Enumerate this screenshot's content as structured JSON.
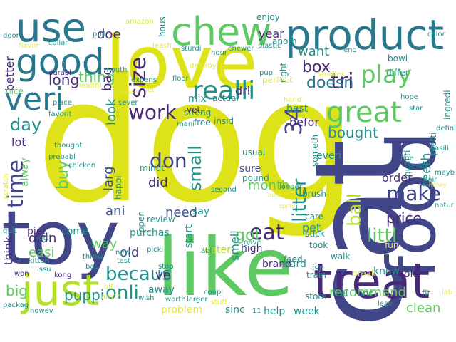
{
  "background": "#ffffff",
  "palette": {
    "yellow": "#dde318",
    "lime": "#b5de2b",
    "green": "#5ec962",
    "teal": "#21918c",
    "blue": "#3b528b",
    "indigo": "#404688",
    "purple": "#482878",
    "deep": "#440154",
    "cyan": "#2a788e",
    "pale": "#e4e84a"
  },
  "words": [
    {
      "text": "dog",
      "color": "yellow",
      "orientation": "horizontal"
    },
    {
      "text": "cat",
      "color": "indigo",
      "orientation": "vertical"
    },
    {
      "text": "love",
      "color": "yellow",
      "orientation": "horizontal"
    },
    {
      "text": "toy",
      "color": "indigo",
      "orientation": "horizontal"
    },
    {
      "text": "like",
      "color": "green",
      "orientation": "horizontal"
    },
    {
      "text": "food",
      "color": "indigo",
      "orientation": "vertical"
    },
    {
      "text": "product",
      "color": "cyan",
      "orientation": "horizontal"
    },
    {
      "text": "treat",
      "color": "purple",
      "orientation": "horizontal"
    },
    {
      "text": "chew",
      "color": "green",
      "orientation": "horizontal"
    },
    {
      "text": "just",
      "color": "lime",
      "orientation": "horizontal"
    },
    {
      "text": "use",
      "color": "cyan",
      "orientation": "horizontal"
    },
    {
      "text": "good",
      "color": "cyan",
      "orientation": "horizontal"
    },
    {
      "text": "veri",
      "color": "cyan",
      "orientation": "horizontal"
    },
    {
      "text": "great",
      "color": "green",
      "orientation": "horizontal"
    },
    {
      "text": "realli",
      "color": "teal",
      "orientation": "horizontal"
    },
    {
      "text": "work",
      "color": "purple",
      "orientation": "horizontal"
    },
    {
      "text": "play",
      "color": "green",
      "orientation": "horizontal"
    },
    {
      "text": "time",
      "color": "indigo",
      "orientation": "vertical"
    },
    {
      "text": "size",
      "color": "purple",
      "orientation": "vertical"
    },
    {
      "text": "tri",
      "color": "purple",
      "orientation": "horizontal"
    },
    {
      "text": "34",
      "color": "indigo",
      "orientation": "vertical"
    },
    {
      "text": "don",
      "color": "indigo",
      "orientation": "horizontal"
    },
    {
      "text": "small",
      "color": "teal",
      "orientation": "vertical"
    },
    {
      "text": "litter",
      "color": "teal",
      "orientation": "vertical"
    },
    {
      "text": "ball",
      "color": "lime",
      "orientation": "vertical"
    },
    {
      "text": "make",
      "color": "indigo",
      "orientation": "horizontal"
    },
    {
      "text": "eat",
      "color": "purple",
      "orientation": "horizontal"
    },
    {
      "text": "littl",
      "color": "green",
      "orientation": "horizontal"
    },
    {
      "text": "becaus",
      "color": "teal",
      "orientation": "horizontal"
    },
    {
      "text": "onli",
      "color": "teal",
      "orientation": "horizontal"
    },
    {
      "text": "day",
      "color": "teal",
      "orientation": "horizontal"
    },
    {
      "text": "buy",
      "color": "green",
      "orientation": "vertical"
    },
    {
      "text": "want",
      "color": "teal",
      "orientation": "horizontal"
    },
    {
      "text": "box",
      "color": "purple",
      "orientation": "horizontal"
    },
    {
      "text": "doesn",
      "color": "cyan",
      "orientation": "horizontal"
    },
    {
      "text": "bought",
      "color": "teal",
      "orientation": "horizontal"
    },
    {
      "text": "month",
      "color": "green",
      "orientation": "horizontal"
    },
    {
      "text": "got",
      "color": "green",
      "orientation": "horizontal"
    },
    {
      "text": "year",
      "color": "purple",
      "orientation": "horizontal"
    },
    {
      "text": "did",
      "color": "purple",
      "orientation": "horizontal"
    },
    {
      "text": "need",
      "color": "blue",
      "orientation": "horizontal"
    },
    {
      "text": "thing",
      "color": "green",
      "orientation": "horizontal"
    },
    {
      "text": "long",
      "color": "purple",
      "orientation": "horizontal"
    },
    {
      "text": "doe",
      "color": "purple",
      "orientation": "horizontal"
    },
    {
      "text": "bag",
      "color": "purple",
      "orientation": "vertical"
    },
    {
      "text": "look",
      "color": "teal",
      "orientation": "vertical"
    },
    {
      "text": "larg",
      "color": "blue",
      "orientation": "vertical"
    },
    {
      "text": "ani",
      "color": "blue",
      "orientation": "horizontal"
    },
    {
      "text": "old",
      "color": "blue",
      "orientation": "horizontal"
    },
    {
      "text": "ve",
      "color": "purple",
      "orientation": "horizontal"
    },
    {
      "text": "puppi",
      "color": "teal",
      "orientation": "horizontal"
    },
    {
      "text": "didn",
      "color": "purple",
      "orientation": "horizontal"
    },
    {
      "text": "easi",
      "color": "green",
      "orientation": "horizontal"
    },
    {
      "text": "think",
      "color": "purple",
      "orientation": "vertical"
    },
    {
      "text": "big",
      "color": "green",
      "orientation": "horizontal"
    },
    {
      "text": "way",
      "color": "green",
      "orientation": "horizontal"
    },
    {
      "text": "recommend",
      "color": "green",
      "orientation": "horizontal"
    },
    {
      "text": "clean",
      "color": "green",
      "orientation": "horizontal"
    },
    {
      "text": "price",
      "color": "purple",
      "orientation": "horizontal"
    },
    {
      "text": "pet",
      "color": "teal",
      "orientation": "horizontal"
    },
    {
      "text": "order",
      "color": "purple",
      "orientation": "horizontal"
    },
    {
      "text": "teeth",
      "color": "teal",
      "orientation": "vertical"
    },
    {
      "text": "smell",
      "color": "teal",
      "orientation": "vertical"
    },
    {
      "text": "better",
      "color": "purple",
      "orientation": "vertical"
    },
    {
      "text": "lot",
      "color": "purple",
      "orientation": "horizontal"
    },
    {
      "text": "alway",
      "color": "green",
      "orientation": "vertical"
    },
    {
      "text": "mix",
      "color": "teal",
      "orientation": "horizontal"
    },
    {
      "text": "best",
      "color": "teal",
      "orientation": "horizontal"
    },
    {
      "text": "befor",
      "color": "purple",
      "orientation": "horizontal"
    },
    {
      "text": "dri",
      "color": "purple",
      "orientation": "horizontal"
    },
    {
      "text": "sure",
      "color": "indigo",
      "orientation": "horizontal"
    },
    {
      "text": "high",
      "color": "purple",
      "orientation": "horizontal"
    },
    {
      "text": "brand",
      "color": "purple",
      "orientation": "horizontal"
    },
    {
      "text": "hard",
      "color": "teal",
      "orientation": "horizontal"
    },
    {
      "text": "water",
      "color": "lime",
      "orientation": "horizontal"
    },
    {
      "text": "away",
      "color": "teal",
      "orientation": "horizontal"
    },
    {
      "text": "purchas",
      "color": "teal",
      "orientation": "horizontal"
    },
    {
      "text": "come",
      "color": "teal",
      "orientation": "horizontal"
    },
    {
      "text": "piec",
      "color": "purple",
      "orientation": "horizontal"
    },
    {
      "text": "say",
      "color": "teal",
      "orientation": "horizontal"
    },
    {
      "text": "start",
      "color": "teal",
      "orientation": "vertical"
    },
    {
      "text": "sinc",
      "color": "teal",
      "orientation": "horizontal"
    },
    {
      "text": "help",
      "color": "teal",
      "orientation": "horizontal"
    },
    {
      "text": "week",
      "color": "teal",
      "orientation": "horizontal"
    },
    {
      "text": "problem",
      "color": "pale",
      "orientation": "horizontal"
    },
    {
      "text": "hold",
      "color": "purple",
      "orientation": "horizontal"
    },
    {
      "text": "know",
      "color": "teal",
      "orientation": "horizontal"
    },
    {
      "text": "everi",
      "color": "teal",
      "orientation": "horizontal"
    },
    {
      "text": "qualiti",
      "color": "teal",
      "orientation": "vertical"
    },
    {
      "text": "pretti",
      "color": "teal",
      "orientation": "vertical"
    },
    {
      "text": "ingredi",
      "color": "teal",
      "orientation": "vertical"
    },
    {
      "text": "bowl",
      "color": "teal",
      "orientation": "horizontal"
    },
    {
      "text": "differ",
      "color": "teal",
      "orientation": "horizontal"
    },
    {
      "text": "enjoy",
      "color": "teal",
      "orientation": "horizontal"
    },
    {
      "text": "nice",
      "color": "green",
      "orientation": "horizontal"
    },
    {
      "text": "hous",
      "color": "teal",
      "orientation": "vertical"
    },
    {
      "text": "review",
      "color": "teal",
      "orientation": "horizontal"
    },
    {
      "text": "minut",
      "color": "teal",
      "orientation": "horizontal"
    },
    {
      "text": "happi",
      "color": "teal",
      "orientation": "vertical"
    },
    {
      "text": "open",
      "color": "teal",
      "orientation": "vertical"
    },
    {
      "text": "right",
      "color": "teal",
      "orientation": "vertical"
    },
    {
      "text": "anoth",
      "color": "teal",
      "orientation": "horizontal"
    },
    {
      "text": "perfect",
      "color": "pale",
      "orientation": "horizontal"
    },
    {
      "text": "actual",
      "color": "teal",
      "orientation": "horizontal"
    },
    {
      "text": "strong",
      "color": "teal",
      "orientation": "horizontal"
    },
    {
      "text": "free",
      "color": "teal",
      "orientation": "horizontal"
    },
    {
      "text": "insid",
      "color": "teal",
      "orientation": "horizontal"
    },
    {
      "text": "usual",
      "color": "teal",
      "orientation": "horizontal"
    },
    {
      "text": "pound",
      "color": "teal",
      "orientation": "horizontal"
    },
    {
      "text": "someth",
      "color": "teal",
      "orientation": "vertical"
    },
    {
      "text": "brush",
      "color": "teal",
      "orientation": "horizontal"
    },
    {
      "text": "stick",
      "color": "teal",
      "orientation": "horizontal"
    },
    {
      "text": "care",
      "color": "teal",
      "orientation": "horizontal"
    },
    {
      "text": "gave",
      "color": "teal",
      "orientation": "horizontal"
    },
    {
      "text": "feed",
      "color": "teal",
      "orientation": "horizontal"
    },
    {
      "text": "took",
      "color": "teal",
      "orientation": "horizontal"
    },
    {
      "text": "walk",
      "color": "teal",
      "orientation": "horizontal"
    },
    {
      "text": "fun",
      "color": "pale",
      "orientation": "horizontal"
    },
    {
      "text": "isn",
      "color": "teal",
      "orientation": "horizontal"
    },
    {
      "text": "train",
      "color": "teal",
      "orientation": "horizontal"
    },
    {
      "text": "store",
      "color": "teal",
      "orientation": "horizontal"
    },
    {
      "text": "feel",
      "color": "teal",
      "orientation": "horizontal"
    },
    {
      "text": "onc",
      "color": "teal",
      "orientation": "horizontal"
    },
    {
      "text": "fit",
      "color": "teal",
      "orientation": "horizontal"
    },
    {
      "text": "lab",
      "color": "pale",
      "orientation": "horizontal"
    },
    {
      "text": "break",
      "color": "pale",
      "orientation": "horizontal"
    },
    {
      "text": "leav",
      "color": "teal",
      "orientation": "horizontal"
    },
    {
      "text": "quick",
      "color": "teal",
      "orientation": "horizontal"
    },
    {
      "text": "hair",
      "color": "teal",
      "orientation": "horizontal"
    },
    {
      "text": "honey",
      "color": "pale",
      "orientation": "horizontal"
    },
    {
      "text": "fine",
      "color": "teal",
      "orientation": "horizontal"
    },
    {
      "text": "mayb",
      "color": "teal",
      "orientation": "horizontal"
    },
    {
      "text": "easili",
      "color": "teal",
      "orientation": "horizontal"
    },
    {
      "text": "natur",
      "color": "teal",
      "orientation": "horizontal"
    },
    {
      "text": "definit",
      "color": "teal",
      "orientation": "horizontal"
    },
    {
      "text": "hope",
      "color": "teal",
      "orientation": "horizontal"
    },
    {
      "text": "star",
      "color": "teal",
      "orientation": "horizontal"
    },
    {
      "text": "smaller",
      "color": "pale",
      "orientation": "horizontal"
    },
    {
      "text": "pup",
      "color": "teal",
      "orientation": "horizontal"
    },
    {
      "text": "end",
      "color": "teal",
      "orientation": "horizontal"
    },
    {
      "text": "color",
      "color": "teal",
      "orientation": "horizontal"
    },
    {
      "text": "plastic",
      "color": "teal",
      "orientation": "horizontal"
    },
    {
      "text": "chewer",
      "color": "teal",
      "orientation": "horizontal"
    },
    {
      "text": "hour",
      "color": "teal",
      "orientation": "horizontal"
    },
    {
      "text": "sturdi",
      "color": "teal",
      "orientation": "horizontal"
    },
    {
      "text": "leash",
      "color": "pale",
      "orientation": "horizontal"
    },
    {
      "text": "amazon",
      "color": "pale",
      "orientation": "horizontal"
    },
    {
      "text": "pull",
      "color": "teal",
      "orientation": "horizontal"
    },
    {
      "text": "door",
      "color": "teal",
      "orientation": "horizontal"
    },
    {
      "text": "flavor",
      "color": "pale",
      "orientation": "horizontal"
    },
    {
      "text": "collar",
      "color": "teal",
      "orientation": "horizontal"
    },
    {
      "text": "durabl",
      "color": "purple",
      "orientation": "horizontal"
    },
    {
      "text": "mouth",
      "color": "teal",
      "orientation": "horizontal"
    },
    {
      "text": "healthi",
      "color": "pale",
      "orientation": "horizontal"
    },
    {
      "text": "expens",
      "color": "teal",
      "orientation": "horizontal"
    },
    {
      "text": "let",
      "color": "pale",
      "orientation": "horizontal"
    },
    {
      "text": "floor",
      "color": "teal",
      "orientation": "horizontal"
    },
    {
      "text": "destroy",
      "color": "pale",
      "orientation": "horizontal"
    },
    {
      "text": "place",
      "color": "teal",
      "orientation": "horizontal"
    },
    {
      "text": "favorit",
      "color": "teal",
      "orientation": "horizontal"
    },
    {
      "text": "sever",
      "color": "teal",
      "orientation": "horizontal"
    },
    {
      "text": "mani",
      "color": "teal",
      "orientation": "horizontal"
    },
    {
      "text": "vet",
      "color": "purple",
      "orientation": "horizontal"
    },
    {
      "text": "hand",
      "color": "pale",
      "orientation": "horizontal"
    },
    {
      "text": "reason",
      "color": "pale",
      "orientation": "horizontal"
    },
    {
      "text": "thought",
      "color": "teal",
      "orientation": "horizontal"
    },
    {
      "text": "probabl",
      "color": "teal",
      "orientation": "horizontal"
    },
    {
      "text": "chicken",
      "color": "teal",
      "orientation": "horizontal"
    },
    {
      "text": "scratch",
      "color": "pale",
      "orientation": "vertical"
    },
    {
      "text": "quit",
      "color": "teal",
      "orientation": "horizontal"
    },
    {
      "text": "kitti",
      "color": "teal",
      "orientation": "horizontal"
    },
    {
      "text": "kitten",
      "color": "teal",
      "orientation": "horizontal"
    },
    {
      "text": "won",
      "color": "purple",
      "orientation": "horizontal"
    },
    {
      "text": "issu",
      "color": "teal",
      "orientation": "horizontal"
    },
    {
      "text": "kong",
      "color": "purple",
      "orientation": "horizontal"
    },
    {
      "text": "packag",
      "color": "teal",
      "orientation": "horizontal"
    },
    {
      "text": "howev",
      "color": "teal",
      "orientation": "horizontal"
    },
    {
      "text": "throw",
      "color": "teal",
      "orientation": "horizontal"
    },
    {
      "text": "bad",
      "color": "teal",
      "orientation": "horizontal"
    },
    {
      "text": "new",
      "color": "teal",
      "orientation": "horizontal"
    },
    {
      "text": "tast",
      "color": "teal",
      "orientation": "horizontal"
    },
    {
      "text": "bit",
      "color": "pale",
      "orientation": "horizontal"
    },
    {
      "text": "anyth",
      "color": "pale",
      "orientation": "horizontal"
    },
    {
      "text": "wish",
      "color": "teal",
      "orientation": "horizontal"
    },
    {
      "text": "stop",
      "color": "teal",
      "orientation": "horizontal"
    },
    {
      "text": "worth",
      "color": "teal",
      "orientation": "horizontal"
    },
    {
      "text": "larger",
      "color": "teal",
      "orientation": "horizontal"
    },
    {
      "text": "coupl",
      "color": "teal",
      "orientation": "horizontal"
    },
    {
      "text": "stuff",
      "color": "pale",
      "orientation": "horizontal"
    },
    {
      "text": "11",
      "color": "teal",
      "orientation": "horizontal"
    },
    {
      "text": "second",
      "color": "teal",
      "orientation": "horizontal"
    },
    {
      "text": "abl",
      "color": "teal",
      "orientation": "horizontal"
    },
    {
      "text": "picki",
      "color": "teal",
      "orientation": "horizontal"
    },
    {
      "text": "longer",
      "color": "teal",
      "orientation": "horizontal"
    },
    {
      "text": "pure",
      "color": "pale",
      "orientation": "horizontal"
    },
    {
      "text": "spray",
      "color": "pale",
      "orientation": "horizontal"
    }
  ]
}
